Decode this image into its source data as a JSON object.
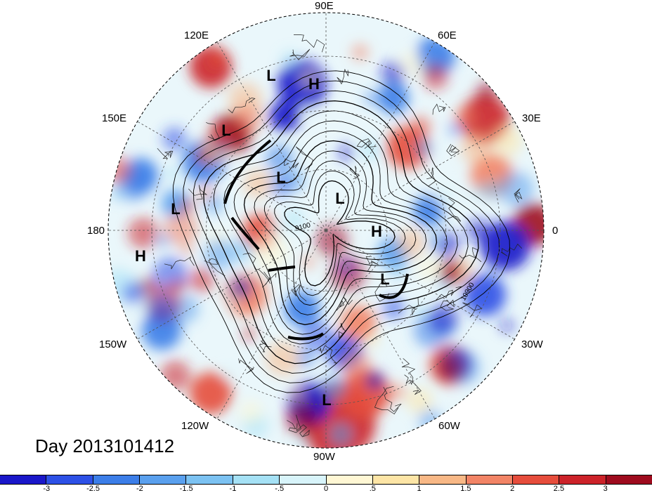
{
  "title": "Day 2013101412",
  "longitude_labels": [
    {
      "text": "90E"
    },
    {
      "text": "60E"
    },
    {
      "text": "30E"
    },
    {
      "text": "0"
    },
    {
      "text": "30W"
    },
    {
      "text": "60W"
    },
    {
      "text": "90W"
    },
    {
      "text": "120W"
    },
    {
      "text": "150W"
    },
    {
      "text": "180"
    },
    {
      "text": "150E"
    },
    {
      "text": "120E"
    }
  ],
  "pressure_systems": [
    {
      "type": "L"
    },
    {
      "type": "H"
    },
    {
      "type": "L"
    },
    {
      "type": "L"
    },
    {
      "type": "L"
    },
    {
      "type": "L"
    },
    {
      "type": "H"
    },
    {
      "type": "H"
    },
    {
      "type": "L"
    },
    {
      "type": "L"
    }
  ],
  "contour_labels": [
    "9100",
    "10900"
  ],
  "colorbar": {
    "colors": [
      "#1a17c9",
      "#2d50e6",
      "#3c7ee8",
      "#5aa0ee",
      "#7cc2f2",
      "#a5e1f5",
      "#d8f4fa",
      "#fff7d4",
      "#fde5a6",
      "#f8b886",
      "#f28466",
      "#e64d3c",
      "#cc2229",
      "#9e0b1e"
    ],
    "ticks": [
      "-3",
      "-2.5",
      "-2",
      "-1.5",
      "-1",
      "-.5",
      "0",
      ".5",
      "1",
      "1.5",
      "2",
      "2.5",
      "3"
    ]
  }
}
